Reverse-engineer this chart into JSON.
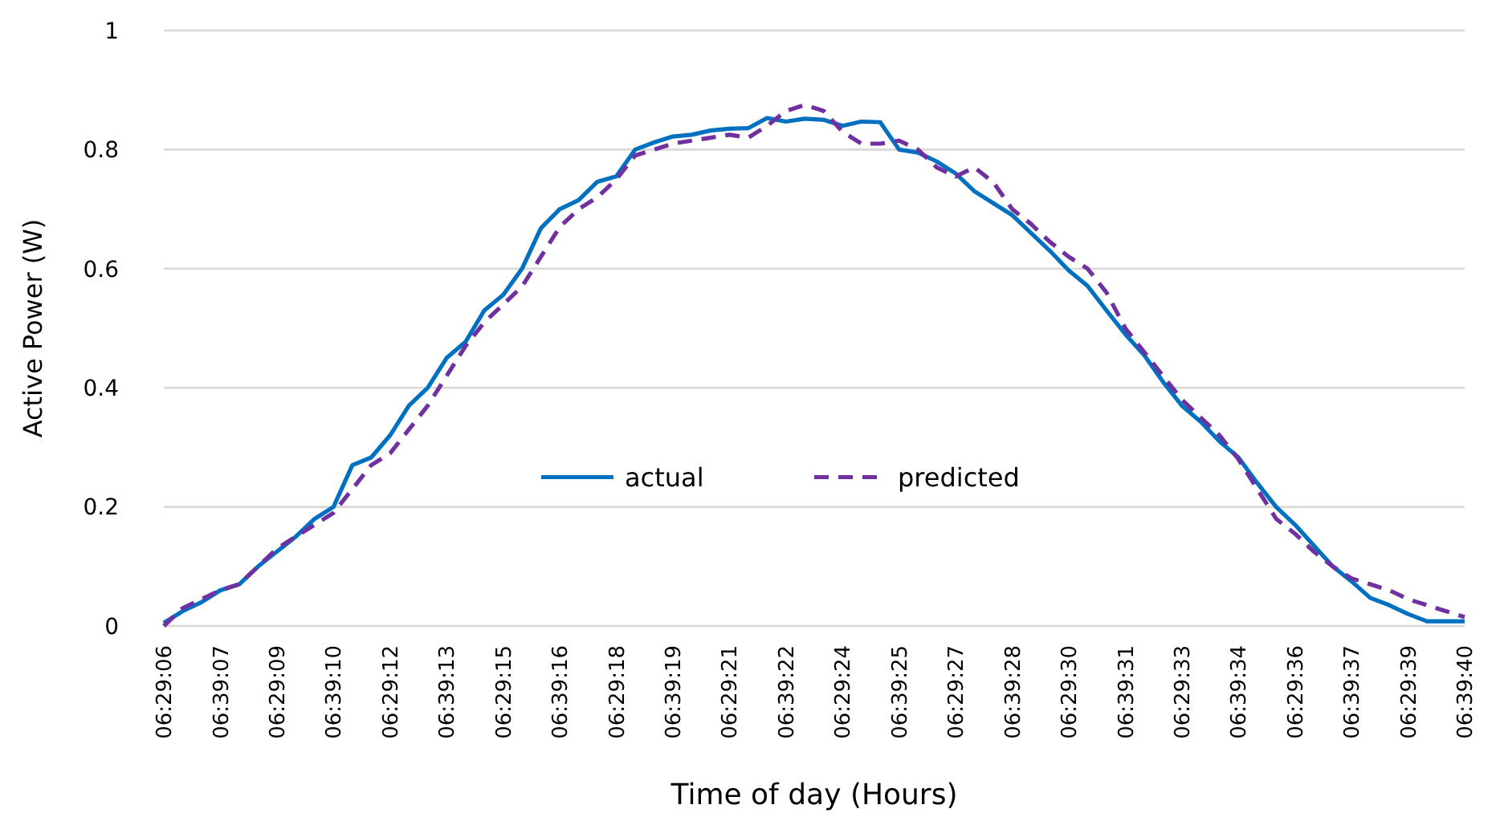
{
  "chart_data": {
    "type": "line",
    "xlabel": "Time of day (Hours)",
    "ylabel": "Active Power (W)",
    "categories": [
      "06:29:06",
      null,
      null,
      "06:39:07",
      null,
      null,
      "06:29:09",
      null,
      null,
      "06:39:10",
      null,
      null,
      "06:29:12",
      null,
      null,
      "06:39:13",
      null,
      null,
      "06:29:15",
      null,
      null,
      "06:39:16",
      null,
      null,
      "06:29:18",
      null,
      null,
      "06:39:19",
      null,
      null,
      "06:29:21",
      null,
      null,
      "06:39:22",
      null,
      null,
      "06:29:24",
      null,
      null,
      "06:39:25",
      null,
      null,
      "06:29:27",
      null,
      null,
      "06:39:28",
      null,
      null,
      "06:29:30",
      null,
      null,
      "06:39:31",
      null,
      null,
      "06:29:33",
      null,
      null,
      "06:39:34",
      null,
      null,
      "06:29:36",
      null,
      null,
      "06:39:37",
      null,
      null,
      "06:29:39",
      null,
      null,
      "06:39:40"
    ],
    "series": [
      {
        "name": "actual",
        "color": "#0070c0",
        "line_style": "solid",
        "values": [
          0.005,
          0.025,
          0.04,
          0.06,
          0.07,
          0.1,
          0.125,
          0.15,
          0.18,
          0.2,
          0.27,
          0.283,
          0.32,
          0.37,
          0.4,
          0.45,
          0.477,
          0.53,
          0.556,
          0.6,
          0.668,
          0.7,
          0.715,
          0.746,
          0.755,
          0.8,
          0.812,
          0.822,
          0.825,
          0.832,
          0.835,
          0.836,
          0.853,
          0.847,
          0.852,
          0.85,
          0.84,
          0.847,
          0.846,
          0.8,
          0.795,
          0.78,
          0.76,
          0.73,
          0.71,
          0.69,
          0.66,
          0.63,
          0.597,
          0.571,
          0.53,
          0.49,
          0.455,
          0.41,
          0.37,
          0.343,
          0.31,
          0.283,
          0.24,
          0.2,
          0.17,
          0.135,
          0.1,
          0.075,
          0.047,
          0.035,
          0.02,
          0.008,
          0.008,
          0.008
        ]
      },
      {
        "name": "predicted",
        "color": "#7030a0",
        "line_style": "dashed",
        "values": [
          0,
          0.03,
          0.045,
          0.06,
          0.07,
          0.1,
          0.13,
          0.15,
          0.17,
          0.19,
          0.23,
          0.27,
          0.29,
          0.33,
          0.37,
          0.42,
          0.47,
          0.51,
          0.54,
          0.57,
          0.62,
          0.67,
          0.7,
          0.72,
          0.75,
          0.79,
          0.8,
          0.81,
          0.815,
          0.82,
          0.825,
          0.82,
          0.84,
          0.865,
          0.875,
          0.865,
          0.83,
          0.81,
          0.81,
          0.815,
          0.8,
          0.77,
          0.755,
          0.77,
          0.745,
          0.7,
          0.675,
          0.645,
          0.62,
          0.6,
          0.56,
          0.5,
          0.46,
          0.42,
          0.38,
          0.35,
          0.32,
          0.28,
          0.23,
          0.18,
          0.155,
          0.125,
          0.1,
          0.08,
          0.07,
          0.06,
          0.045,
          0.035,
          0.025,
          0.015
        ]
      }
    ],
    "ylim": [
      0,
      1
    ],
    "yticks": [
      0,
      0.2,
      0.4,
      0.6,
      0.8,
      1
    ],
    "grid": "y",
    "legend": "center",
    "marker": "none"
  }
}
